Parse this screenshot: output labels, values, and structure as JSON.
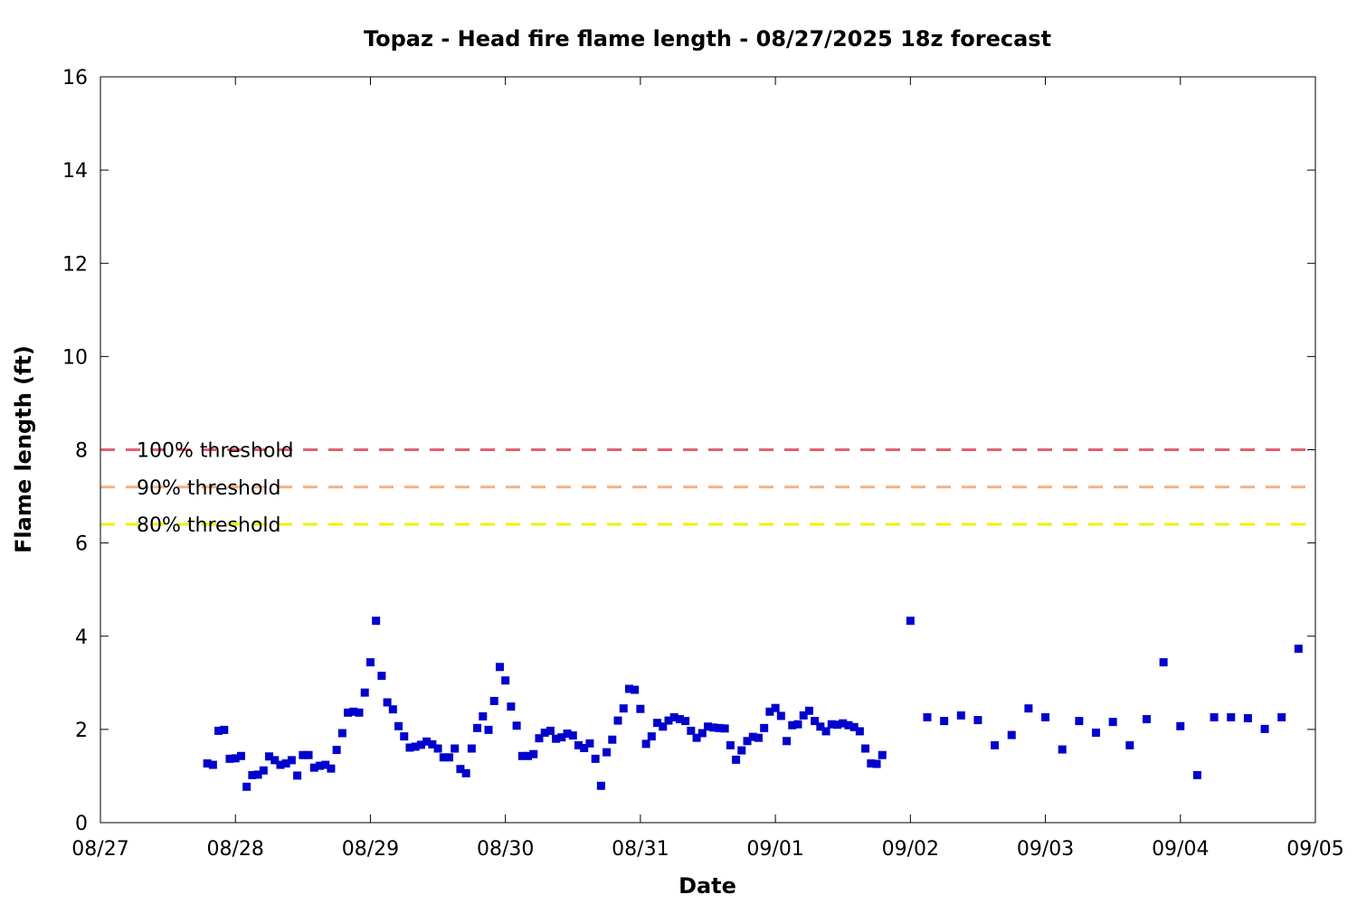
{
  "chart_data": {
    "type": "scatter",
    "title": "Topaz - Head fire flame length - 08/27/2025 18z forecast",
    "xlabel": "Date",
    "ylabel": "Flame length (ft)",
    "xlim": [
      "2025-08-27 00:00",
      "2025-09-05 00:00"
    ],
    "ylim": [
      0,
      16
    ],
    "x_ticks": [
      "08/27",
      "08/28",
      "08/29",
      "08/30",
      "08/31",
      "09/01",
      "09/02",
      "09/03",
      "09/04",
      "09/05"
    ],
    "y_ticks": [
      "0",
      "2",
      "4",
      "6",
      "8",
      "10",
      "12",
      "14",
      "16"
    ],
    "grid": false,
    "marker_color": "#0000cc",
    "thresholds": [
      {
        "label": "100% threshold",
        "value": 8.0,
        "color": "#e06070"
      },
      {
        "label": "90% threshold",
        "value": 7.2,
        "color": "#f5b080"
      },
      {
        "label": "80% threshold",
        "value": 6.4,
        "color": "#f0f000"
      }
    ],
    "series": [
      {
        "points": [
          [
            "2025-08-27 19:00",
            1.27
          ],
          [
            "2025-08-27 20:00",
            1.24
          ],
          [
            "2025-08-27 21:00",
            1.97
          ],
          [
            "2025-08-27 22:00",
            1.99
          ],
          [
            "2025-08-27 23:00",
            1.37
          ],
          [
            "2025-08-28 00:00",
            1.38
          ],
          [
            "2025-08-28 01:00",
            1.43
          ],
          [
            "2025-08-28 02:00",
            0.77
          ],
          [
            "2025-08-28 03:00",
            1.02
          ],
          [
            "2025-08-28 04:00",
            1.03
          ],
          [
            "2025-08-28 05:00",
            1.12
          ],
          [
            "2025-08-28 06:00",
            1.42
          ],
          [
            "2025-08-28 07:00",
            1.34
          ],
          [
            "2025-08-28 08:00",
            1.24
          ],
          [
            "2025-08-28 09:00",
            1.27
          ],
          [
            "2025-08-28 10:00",
            1.34
          ],
          [
            "2025-08-28 11:00",
            1.01
          ],
          [
            "2025-08-28 12:00",
            1.45
          ],
          [
            "2025-08-28 13:00",
            1.45
          ],
          [
            "2025-08-28 14:00",
            1.18
          ],
          [
            "2025-08-28 15:00",
            1.22
          ],
          [
            "2025-08-28 16:00",
            1.24
          ],
          [
            "2025-08-28 17:00",
            1.16
          ],
          [
            "2025-08-28 18:00",
            1.56
          ],
          [
            "2025-08-28 19:00",
            1.92
          ],
          [
            "2025-08-28 20:00",
            2.36
          ],
          [
            "2025-08-28 21:00",
            2.38
          ],
          [
            "2025-08-28 22:00",
            2.36
          ],
          [
            "2025-08-28 23:00",
            2.79
          ],
          [
            "2025-08-29 00:00",
            3.44
          ],
          [
            "2025-08-29 01:00",
            4.33
          ],
          [
            "2025-08-29 02:00",
            3.15
          ],
          [
            "2025-08-29 03:00",
            2.58
          ],
          [
            "2025-08-29 04:00",
            2.43
          ],
          [
            "2025-08-29 05:00",
            2.07
          ],
          [
            "2025-08-29 06:00",
            1.85
          ],
          [
            "2025-08-29 07:00",
            1.61
          ],
          [
            "2025-08-29 08:00",
            1.63
          ],
          [
            "2025-08-29 09:00",
            1.67
          ],
          [
            "2025-08-29 10:00",
            1.74
          ],
          [
            "2025-08-29 11:00",
            1.68
          ],
          [
            "2025-08-29 12:00",
            1.59
          ],
          [
            "2025-08-29 13:00",
            1.4
          ],
          [
            "2025-08-29 14:00",
            1.4
          ],
          [
            "2025-08-29 15:00",
            1.59
          ],
          [
            "2025-08-29 16:00",
            1.15
          ],
          [
            "2025-08-29 17:00",
            1.06
          ],
          [
            "2025-08-29 18:00",
            1.59
          ],
          [
            "2025-08-29 19:00",
            2.03
          ],
          [
            "2025-08-29 20:00",
            2.28
          ],
          [
            "2025-08-29 21:00",
            1.99
          ],
          [
            "2025-08-29 22:00",
            2.61
          ],
          [
            "2025-08-29 23:00",
            3.34
          ],
          [
            "2025-08-30 00:00",
            3.05
          ],
          [
            "2025-08-30 01:00",
            2.49
          ],
          [
            "2025-08-30 02:00",
            2.08
          ],
          [
            "2025-08-30 03:00",
            1.43
          ],
          [
            "2025-08-30 04:00",
            1.43
          ],
          [
            "2025-08-30 05:00",
            1.47
          ],
          [
            "2025-08-30 06:00",
            1.81
          ],
          [
            "2025-08-30 07:00",
            1.93
          ],
          [
            "2025-08-30 08:00",
            1.97
          ],
          [
            "2025-08-30 09:00",
            1.8
          ],
          [
            "2025-08-30 10:00",
            1.83
          ],
          [
            "2025-08-30 11:00",
            1.91
          ],
          [
            "2025-08-30 12:00",
            1.87
          ],
          [
            "2025-08-30 13:00",
            1.66
          ],
          [
            "2025-08-30 14:00",
            1.6
          ],
          [
            "2025-08-30 15:00",
            1.7
          ],
          [
            "2025-08-30 16:00",
            1.37
          ],
          [
            "2025-08-30 17:00",
            0.79
          ],
          [
            "2025-08-30 18:00",
            1.51
          ],
          [
            "2025-08-30 19:00",
            1.78
          ],
          [
            "2025-08-30 20:00",
            2.19
          ],
          [
            "2025-08-30 21:00",
            2.45
          ],
          [
            "2025-08-30 22:00",
            2.87
          ],
          [
            "2025-08-30 23:00",
            2.85
          ],
          [
            "2025-08-31 00:00",
            2.44
          ],
          [
            "2025-08-31 01:00",
            1.69
          ],
          [
            "2025-08-31 02:00",
            1.85
          ],
          [
            "2025-08-31 03:00",
            2.14
          ],
          [
            "2025-08-31 04:00",
            2.06
          ],
          [
            "2025-08-31 05:00",
            2.19
          ],
          [
            "2025-08-31 06:00",
            2.26
          ],
          [
            "2025-08-31 07:00",
            2.22
          ],
          [
            "2025-08-31 08:00",
            2.18
          ],
          [
            "2025-08-31 09:00",
            1.97
          ],
          [
            "2025-08-31 10:00",
            1.82
          ],
          [
            "2025-08-31 11:00",
            1.92
          ],
          [
            "2025-08-31 12:00",
            2.06
          ],
          [
            "2025-08-31 13:00",
            2.04
          ],
          [
            "2025-08-31 14:00",
            2.03
          ],
          [
            "2025-08-31 15:00",
            2.02
          ],
          [
            "2025-08-31 16:00",
            1.66
          ],
          [
            "2025-08-31 17:00",
            1.35
          ],
          [
            "2025-08-31 18:00",
            1.55
          ],
          [
            "2025-08-31 19:00",
            1.75
          ],
          [
            "2025-08-31 20:00",
            1.84
          ],
          [
            "2025-08-31 21:00",
            1.82
          ],
          [
            "2025-08-31 22:00",
            2.03
          ],
          [
            "2025-08-31 23:00",
            2.38
          ],
          [
            "2025-09-01 00:00",
            2.46
          ],
          [
            "2025-09-01 01:00",
            2.29
          ],
          [
            "2025-09-01 02:00",
            1.75
          ],
          [
            "2025-09-01 03:00",
            2.09
          ],
          [
            "2025-09-01 04:00",
            2.11
          ],
          [
            "2025-09-01 05:00",
            2.3
          ],
          [
            "2025-09-01 06:00",
            2.4
          ],
          [
            "2025-09-01 07:00",
            2.18
          ],
          [
            "2025-09-01 08:00",
            2.06
          ],
          [
            "2025-09-01 09:00",
            1.96
          ],
          [
            "2025-09-01 10:00",
            2.11
          ],
          [
            "2025-09-01 11:00",
            2.1
          ],
          [
            "2025-09-01 12:00",
            2.13
          ],
          [
            "2025-09-01 13:00",
            2.09
          ],
          [
            "2025-09-01 14:00",
            2.05
          ],
          [
            "2025-09-01 15:00",
            1.96
          ],
          [
            "2025-09-01 16:00",
            1.59
          ],
          [
            "2025-09-01 17:00",
            1.27
          ],
          [
            "2025-09-01 18:00",
            1.26
          ],
          [
            "2025-09-01 19:00",
            1.45
          ],
          [
            "2025-09-02 00:00",
            4.33
          ],
          [
            "2025-09-02 03:00",
            2.26
          ],
          [
            "2025-09-02 06:00",
            2.18
          ],
          [
            "2025-09-02 09:00",
            2.3
          ],
          [
            "2025-09-02 12:00",
            2.2
          ],
          [
            "2025-09-02 15:00",
            1.66
          ],
          [
            "2025-09-02 18:00",
            1.88
          ],
          [
            "2025-09-02 21:00",
            2.45
          ],
          [
            "2025-09-03 00:00",
            2.26
          ],
          [
            "2025-09-03 03:00",
            1.57
          ],
          [
            "2025-09-03 06:00",
            2.18
          ],
          [
            "2025-09-03 09:00",
            1.93
          ],
          [
            "2025-09-03 12:00",
            2.16
          ],
          [
            "2025-09-03 15:00",
            1.66
          ],
          [
            "2025-09-03 18:00",
            2.22
          ],
          [
            "2025-09-03 21:00",
            3.44
          ],
          [
            "2025-09-04 00:00",
            2.07
          ],
          [
            "2025-09-04 03:00",
            1.02
          ],
          [
            "2025-09-04 06:00",
            2.26
          ],
          [
            "2025-09-04 09:00",
            2.26
          ],
          [
            "2025-09-04 12:00",
            2.24
          ],
          [
            "2025-09-04 15:00",
            2.01
          ],
          [
            "2025-09-04 18:00",
            2.26
          ],
          [
            "2025-09-04 21:00",
            3.73
          ]
        ]
      }
    ]
  }
}
